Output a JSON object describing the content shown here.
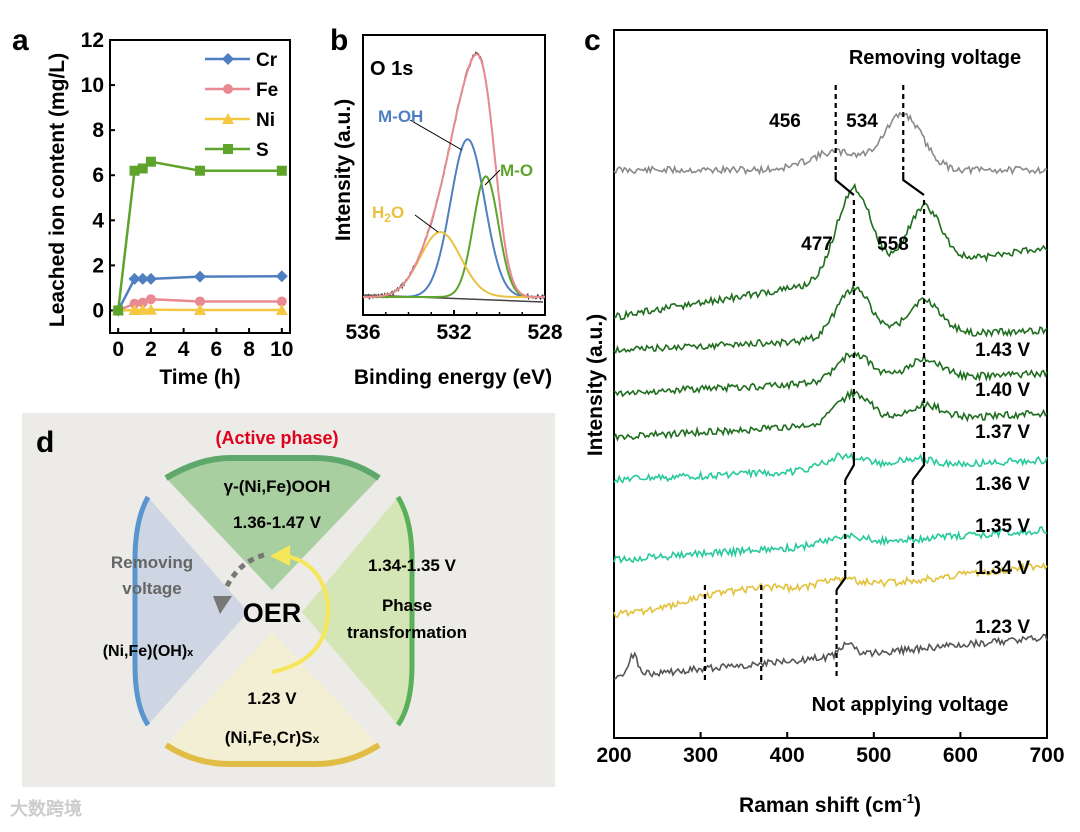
{
  "panel_labels": {
    "a": "a",
    "b": "b",
    "c": "c",
    "d": "d"
  },
  "chart_data": [
    {
      "type": "line",
      "panel": "a",
      "xlabel": "Time (h)",
      "ylabel": "Leached ion content (mg/L)",
      "xlim": [
        -0.5,
        10.5
      ],
      "ylim": [
        -1,
        12
      ],
      "xticks": [
        "0",
        "2",
        "4",
        "6",
        "8",
        "10"
      ],
      "yticks": [
        "0",
        "2",
        "4",
        "6",
        "8",
        "10",
        "12"
      ],
      "x": [
        0,
        1,
        1.5,
        2,
        5,
        10
      ],
      "legend_position": "top-right",
      "series": [
        {
          "name": "Cr",
          "color": "#4f7fc0",
          "marker": "diamond",
          "values": [
            0,
            1.4,
            1.4,
            1.4,
            1.5,
            1.52
          ]
        },
        {
          "name": "Fe",
          "color": "#e98a93",
          "marker": "circle",
          "values": [
            0,
            0.3,
            0.35,
            0.5,
            0.4,
            0.4
          ]
        },
        {
          "name": "Ni",
          "color": "#f5c842",
          "marker": "triangle",
          "values": [
            0,
            0.02,
            0.03,
            0.03,
            0.02,
            0.02
          ]
        },
        {
          "name": "S",
          "color": "#5ea32a",
          "marker": "square",
          "values": [
            0,
            6.2,
            6.3,
            6.6,
            6.2,
            6.2
          ]
        }
      ]
    },
    {
      "type": "line",
      "panel": "b",
      "title": "O 1s",
      "xlabel": "Binding energy (eV)",
      "ylabel": "Intensity (a.u.)",
      "xlim": [
        536,
        528
      ],
      "xticks": [
        "536",
        "532",
        "528"
      ],
      "components": [
        {
          "name": "M-OH",
          "color": "#4f7fc0",
          "center": 531.4,
          "height": 0.68,
          "width": 0.75
        },
        {
          "name": "M-O",
          "color": "#5ea32a",
          "center": 530.6,
          "height": 0.52,
          "width": 0.55
        },
        {
          "name": "H2O",
          "label_main": "H",
          "label_sub": "2",
          "label_end": "O",
          "color": "#e8c240",
          "center": 532.6,
          "height": 0.28,
          "width": 0.9
        },
        {
          "name": "Fit",
          "color": "#e98a93",
          "center": 531.3,
          "height": 1.0,
          "width": 1.0
        }
      ]
    },
    {
      "type": "line",
      "panel": "c",
      "xlabel": "Raman shift (cm",
      "xlabel_sup": "-1",
      "xlabel_end": ")",
      "ylabel": "Intensity (a.u.)",
      "xlim": [
        200,
        700
      ],
      "xticks": [
        "200",
        "300",
        "400",
        "500",
        "600",
        "700"
      ],
      "top_label": "Removing voltage",
      "bottom_label": "Not applying voltage",
      "peak_labels": [
        {
          "text": "456"
        },
        {
          "text": "534"
        },
        {
          "text": "477"
        },
        {
          "text": "558"
        }
      ],
      "series": [
        {
          "name": "Removing voltage",
          "label": "",
          "color": "#8a8a8a",
          "peaks": [
            [
              456,
              18,
              30
            ],
            [
              534,
              55,
              22
            ]
          ]
        },
        {
          "name": "1.43 V",
          "label": "",
          "color": "#1f6e1f",
          "peaks": [
            [
              477,
              90,
              20
            ],
            [
              558,
              60,
              20
            ]
          ]
        },
        {
          "name": "1.43 V",
          "label": "1.43 V",
          "color": "#1f6e1f",
          "peaks": [
            [
              477,
              50,
              20
            ],
            [
              558,
              35,
              20
            ]
          ]
        },
        {
          "name": "1.40 V",
          "label": "1.40 V",
          "color": "#1f6e1f",
          "peaks": [
            [
              477,
              28,
              20
            ],
            [
              558,
              20,
              20
            ]
          ]
        },
        {
          "name": "1.37 V",
          "label": "1.37 V",
          "color": "#1f6e1f",
          "peaks": [
            [
              477,
              30,
              20
            ],
            [
              558,
              15,
              20
            ]
          ]
        },
        {
          "name": "1.36 V",
          "label": "1.36 V",
          "color": "#28c99a",
          "peaks": [
            [
              467,
              14,
              22
            ],
            [
              545,
              8,
              20
            ]
          ]
        },
        {
          "name": "1.35 V",
          "label": "1.35 V",
          "color": "#28c99a",
          "peaks": [
            [
              465,
              8,
              22
            ]
          ]
        },
        {
          "name": "1.34 V",
          "label": "1.34 V",
          "color": "#e2c23a",
          "peaks": [
            [
              305,
              8,
              30
            ],
            [
              370,
              10,
              30
            ],
            [
              455,
              10,
              25
            ]
          ]
        },
        {
          "name": "1.23 V",
          "label": "1.23 V",
          "color": "#555555",
          "peaks": [
            [
              222,
              20,
              5
            ],
            [
              470,
              14,
              8
            ]
          ]
        }
      ]
    }
  ],
  "diagram": {
    "active_phase": "(Active phase)",
    "top_formula": "γ-(Ni,Fe)OOH",
    "top_voltage": "1.36-1.47 V",
    "left_line1": "Removing",
    "left_line2": "voltage",
    "left_formula": "(Ni,Fe)(OH)",
    "left_sub": "x",
    "center": "OER",
    "right_voltage": "1.34-1.35 V",
    "right_line1": "Phase",
    "right_line2": "transformation",
    "bottom_voltage": "1.23 V",
    "bottom_formula": "(Ni,Fe,Cr)S",
    "bottom_sub": "x",
    "colors": {
      "red": "#e0001b",
      "top": "#a9cfa0",
      "left": "#cdd6e2",
      "right": "#d4e6b5",
      "bottom": "#f3efd5"
    }
  },
  "watermark": "大数跨境"
}
